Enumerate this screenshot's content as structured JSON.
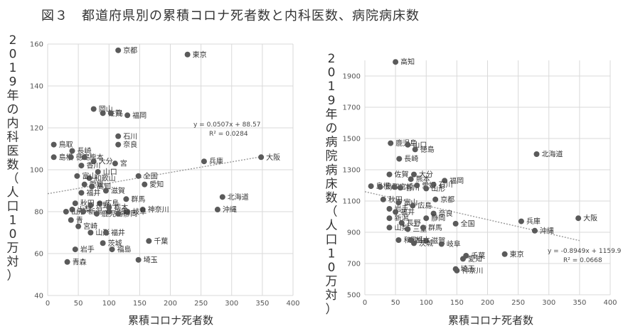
{
  "title": "図３　都道府県別の累積コロナ死者数と内科医数、病院病床数",
  "chart_data": [
    {
      "type": "scatter",
      "xlabel": "累積コロナ死者数",
      "ylabel": "2019年の内科医数（人口10万対）",
      "xlim": [
        0,
        400
      ],
      "ylim": [
        40,
        160
      ],
      "xticks": [
        0,
        50,
        100,
        150,
        200,
        250,
        300,
        350,
        400
      ],
      "yticks": [
        40,
        60,
        80,
        100,
        120,
        140,
        160
      ],
      "grid": true,
      "trendline": {
        "slope": 0.0507,
        "intercept": 88.57,
        "equation": "y = 0.0507x + 88.57",
        "r2": "R² = 0.0284"
      },
      "points": [
        {
          "label": "京都",
          "x": 115,
          "y": 157
        },
        {
          "label": "東京",
          "x": 228,
          "y": 155
        },
        {
          "label": "岡山",
          "x": 75,
          "y": 129
        },
        {
          "label": "佐賀",
          "x": 90,
          "y": 127
        },
        {
          "label": "鳥",
          "x": 103,
          "y": 127
        },
        {
          "label": "福岡",
          "x": 130,
          "y": 126
        },
        {
          "label": "石川",
          "x": 115,
          "y": 116
        },
        {
          "label": "奈良",
          "x": 115,
          "y": 112
        },
        {
          "label": "鳥取",
          "x": 10,
          "y": 112
        },
        {
          "label": "長崎",
          "x": 40,
          "y": 109
        },
        {
          "label": "島根",
          "x": 10,
          "y": 106
        },
        {
          "label": "徳島",
          "x": 38,
          "y": 106
        },
        {
          "label": "熊本",
          "x": 60,
          "y": 106
        },
        {
          "label": "大分",
          "x": 75,
          "y": 104
        },
        {
          "label": "香川",
          "x": 55,
          "y": 102
        },
        {
          "label": "宮",
          "x": 110,
          "y": 103
        },
        {
          "label": "山口",
          "x": 82,
          "y": 99
        },
        {
          "label": "和歌山",
          "x": 68,
          "y": 96
        },
        {
          "label": "富山",
          "x": 48,
          "y": 97
        },
        {
          "label": "兵庫",
          "x": 255,
          "y": 104
        },
        {
          "label": "大阪",
          "x": 348,
          "y": 106
        },
        {
          "label": "全国",
          "x": 148,
          "y": 97
        },
        {
          "label": "愛知",
          "x": 158,
          "y": 93
        },
        {
          "label": "愛媛",
          "x": 60,
          "y": 93
        },
        {
          "label": "高知",
          "x": 72,
          "y": 92
        },
        {
          "label": "滋賀",
          "x": 95,
          "y": 90
        },
        {
          "label": "福井",
          "x": 55,
          "y": 89
        },
        {
          "label": "北海道",
          "x": 285,
          "y": 87
        },
        {
          "label": "群馬",
          "x": 128,
          "y": 86
        },
        {
          "label": "秋田",
          "x": 45,
          "y": 84
        },
        {
          "label": "広島",
          "x": 85,
          "y": 84
        },
        {
          "label": "長野",
          "x": 70,
          "y": 83
        },
        {
          "label": "栃木",
          "x": 100,
          "y": 82
        },
        {
          "label": "山梨",
          "x": 40,
          "y": 81
        },
        {
          "label": "神奈川",
          "x": 155,
          "y": 81
        },
        {
          "label": "沖縄",
          "x": 277,
          "y": 81
        },
        {
          "label": "山形",
          "x": 30,
          "y": 80
        },
        {
          "label": "新潟",
          "x": 58,
          "y": 80
        },
        {
          "label": "三重",
          "x": 100,
          "y": 80
        },
        {
          "label": "岐阜",
          "x": 130,
          "y": 80
        },
        {
          "label": "鹿児島",
          "x": 80,
          "y": 79
        },
        {
          "label": "静岡",
          "x": 115,
          "y": 79
        },
        {
          "label": "青",
          "x": 38,
          "y": 76
        },
        {
          "label": "宮崎",
          "x": 50,
          "y": 73
        },
        {
          "label": "山形",
          "x": 70,
          "y": 70
        },
        {
          "label": "福井",
          "x": 95,
          "y": 70
        },
        {
          "label": "千葉",
          "x": 165,
          "y": 66
        },
        {
          "label": "茨城",
          "x": 90,
          "y": 65
        },
        {
          "label": "岩手",
          "x": 45,
          "y": 62
        },
        {
          "label": "福島",
          "x": 105,
          "y": 62
        },
        {
          "label": "青森",
          "x": 32,
          "y": 56
        },
        {
          "label": "埼玉",
          "x": 148,
          "y": 57
        }
      ]
    },
    {
      "type": "scatter",
      "xlabel": "累積コロナ死者数",
      "ylabel": "2019年の病院病床数（人口10万対）",
      "xlim": [
        0,
        400
      ],
      "ylim": [
        500,
        2000
      ],
      "xticks": [
        0,
        50,
        100,
        150,
        200,
        250,
        300,
        350,
        400
      ],
      "yticks": [
        500,
        700,
        900,
        1100,
        1300,
        1500,
        1700,
        1900
      ],
      "grid": true,
      "trendline": {
        "slope": -0.8949,
        "intercept": 1159.9,
        "equation": "y = -0.8949x + 1159.9",
        "r2": "R² = 0.0668"
      },
      "points": [
        {
          "label": "高知",
          "x": 50,
          "y": 1990
        },
        {
          "label": "鹿児島",
          "x": 42,
          "y": 1470
        },
        {
          "label": "山口",
          "x": 70,
          "y": 1460
        },
        {
          "label": "徳島",
          "x": 82,
          "y": 1430
        },
        {
          "label": "長崎",
          "x": 56,
          "y": 1370
        },
        {
          "label": "北海道",
          "x": 280,
          "y": 1400
        },
        {
          "label": "佐賀",
          "x": 40,
          "y": 1270
        },
        {
          "label": "大分",
          "x": 80,
          "y": 1270
        },
        {
          "label": "熊本",
          "x": 75,
          "y": 1240
        },
        {
          "label": "福岡",
          "x": 130,
          "y": 1230
        },
        {
          "label": "島根",
          "x": 10,
          "y": 1195
        },
        {
          "label": "鳥取",
          "x": 25,
          "y": 1190
        },
        {
          "label": "宮崎",
          "x": 48,
          "y": 1190
        },
        {
          "label": "香川",
          "x": 58,
          "y": 1185
        },
        {
          "label": "愛媛",
          "x": 85,
          "y": 1200
        },
        {
          "label": "石川",
          "x": 112,
          "y": 1205
        },
        {
          "label": "山形",
          "x": 100,
          "y": 1180
        },
        {
          "label": "京都",
          "x": 115,
          "y": 1110
        },
        {
          "label": "秋田",
          "x": 30,
          "y": 1110
        },
        {
          "label": "富山",
          "x": 55,
          "y": 1090
        },
        {
          "label": "広島",
          "x": 78,
          "y": 1070
        },
        {
          "label": "岩手",
          "x": 40,
          "y": 1050
        },
        {
          "label": "福井",
          "x": 50,
          "y": 1030
        },
        {
          "label": "奈良",
          "x": 112,
          "y": 1020
        },
        {
          "label": "新潟",
          "x": 40,
          "y": 990
        },
        {
          "label": "静岡",
          "x": 100,
          "y": 990
        },
        {
          "label": "長野",
          "x": 60,
          "y": 960
        },
        {
          "label": "兵庫",
          "x": 255,
          "y": 970
        },
        {
          "label": "大阪",
          "x": 348,
          "y": 990
        },
        {
          "label": "全国",
          "x": 148,
          "y": 955
        },
        {
          "label": "沖縄",
          "x": 277,
          "y": 910
        },
        {
          "label": "山梨",
          "x": 40,
          "y": 930
        },
        {
          "label": "三重",
          "x": 70,
          "y": 920
        },
        {
          "label": "群馬",
          "x": 95,
          "y": 930
        },
        {
          "label": "和歌山",
          "x": 55,
          "y": 850
        },
        {
          "label": "栃木",
          "x": 75,
          "y": 850
        },
        {
          "label": "滋賀",
          "x": 100,
          "y": 845
        },
        {
          "label": "岐阜",
          "x": 125,
          "y": 825
        },
        {
          "label": "茨城",
          "x": 80,
          "y": 830
        },
        {
          "label": "千葉",
          "x": 165,
          "y": 750
        },
        {
          "label": "東京",
          "x": 228,
          "y": 760
        },
        {
          "label": "愛知",
          "x": 160,
          "y": 730
        },
        {
          "label": "埼玉",
          "x": 148,
          "y": 665
        },
        {
          "label": "神奈川",
          "x": 150,
          "y": 655
        }
      ]
    }
  ]
}
